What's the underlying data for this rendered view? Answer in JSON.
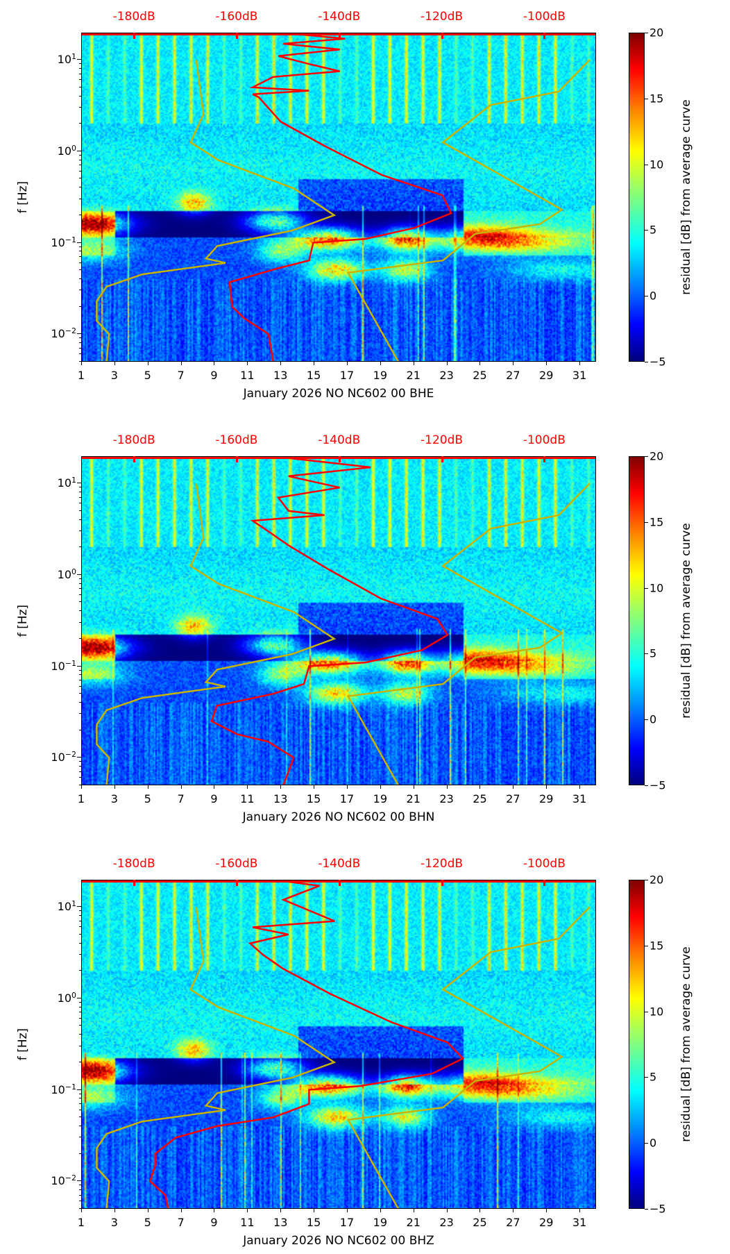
{
  "chart_data": {
    "type": "heatmap",
    "description_axes": "spectrogram of residual PSD vs day of month and frequency, with overlaid noise-model and median PSD curves",
    "x": {
      "label_template": "January 2026",
      "range": [
        1,
        32
      ],
      "ticks": [
        1,
        3,
        5,
        7,
        9,
        11,
        13,
        15,
        17,
        19,
        21,
        23,
        25,
        27,
        29,
        31
      ]
    },
    "y": {
      "label": "f [Hz]",
      "scale": "log",
      "range": [
        0.0049,
        19.5
      ],
      "ticks": [
        {
          "value": 10,
          "label": "10",
          "exp": "1"
        },
        {
          "value": 1,
          "label": "10",
          "exp": "0"
        },
        {
          "value": 0.1,
          "label": "10",
          "exp": "−1"
        },
        {
          "value": 0.01,
          "label": "10",
          "exp": "−2"
        }
      ]
    },
    "top_axis": {
      "range": [
        -190.3,
        -89.9
      ],
      "ticks": [
        -180,
        -160,
        -140,
        -120,
        -100
      ],
      "tick_labels": [
        "-180dB",
        "-160dB",
        "-140dB",
        "-120dB",
        "-100dB"
      ],
      "color": "#ff0000"
    },
    "colorbar": {
      "label": "residual [dB] from average curve",
      "range": [
        -5,
        20
      ],
      "ticks": [
        20,
        15,
        10,
        5,
        0,
        -5
      ],
      "tick_labels": [
        "20",
        "15",
        "10",
        "5",
        "0",
        "−5"
      ],
      "colormap": "jet"
    },
    "model_curves": {
      "color": "#c8b400",
      "low_noise": [
        [
          10,
          -168
        ],
        [
          2.54,
          -166.6
        ],
        [
          1.25,
          -169.1
        ],
        [
          0.8,
          -163.7
        ],
        [
          0.39,
          -148.9
        ],
        [
          0.2,
          -141.1
        ],
        [
          0.136,
          -149.3
        ],
        [
          0.092,
          -163.9
        ],
        [
          0.067,
          -166.1
        ],
        [
          0.06,
          -162.3
        ],
        [
          0.045,
          -178.6
        ],
        [
          0.033,
          -185.5
        ],
        [
          0.023,
          -187.4
        ],
        [
          0.014,
          -187.4
        ],
        [
          0.01,
          -185
        ],
        [
          0.005,
          -185.5
        ]
      ],
      "high_noise": [
        [
          10,
          -91.3
        ],
        [
          4.5,
          -97.3
        ],
        [
          3.2,
          -110.6
        ],
        [
          1.25,
          -119.9
        ],
        [
          0.23,
          -96.7
        ],
        [
          0.16,
          -101
        ],
        [
          0.125,
          -113.6
        ],
        [
          0.064,
          -119.9
        ],
        [
          0.047,
          -138.4
        ],
        [
          0.005,
          -128.6
        ]
      ]
    },
    "panels": [
      {
        "channel": "BHE",
        "xlabel": "January 2026 NO NC602 00 BHE",
        "seed": 11,
        "median_psd": {
          "color": "#ff0000",
          "points": [
            [
              19.5,
              -150
            ],
            [
              17,
              -139
            ],
            [
              15,
              -151
            ],
            [
              13,
              -140
            ],
            [
              11,
              -152
            ],
            [
              9,
              -146
            ],
            [
              7.5,
              -140
            ],
            [
              6.5,
              -153
            ],
            [
              5,
              -157
            ],
            [
              4.6,
              -146
            ],
            [
              4.2,
              -157
            ],
            [
              3.9,
              -155.8
            ],
            [
              3,
              -154
            ],
            [
              2.1,
              -151.5
            ],
            [
              1.13,
              -142.8
            ],
            [
              0.55,
              -131.8
            ],
            [
              0.33,
              -120
            ],
            [
              0.21,
              -118.3
            ],
            [
              0.145,
              -125.5
            ],
            [
              0.11,
              -135
            ],
            [
              0.1,
              -145.2
            ],
            [
              0.064,
              -146
            ],
            [
              0.052,
              -152.3
            ],
            [
              0.037,
              -161.5
            ],
            [
              0.02,
              -161
            ],
            [
              0.015,
              -158.7
            ],
            [
              0.01,
              -153.9
            ],
            [
              0.005,
              -153
            ]
          ]
        }
      },
      {
        "channel": "BHN",
        "xlabel": "January 2026 NO NC602 00 BHN",
        "seed": 23,
        "median_psd": {
          "color": "#ff0000",
          "points": [
            [
              19.5,
              -152
            ],
            [
              15,
              -134
            ],
            [
              12,
              -150
            ],
            [
              9,
              -140
            ],
            [
              7,
              -152
            ],
            [
              5,
              -150
            ],
            [
              4.5,
              -143
            ],
            [
              3.9,
              -157
            ],
            [
              3,
              -154
            ],
            [
              2.1,
              -150
            ],
            [
              1.13,
              -142
            ],
            [
              0.55,
              -132
            ],
            [
              0.33,
              -121
            ],
            [
              0.22,
              -119
            ],
            [
              0.15,
              -124
            ],
            [
              0.11,
              -135
            ],
            [
              0.1,
              -146
            ],
            [
              0.064,
              -147
            ],
            [
              0.05,
              -153
            ],
            [
              0.037,
              -164
            ],
            [
              0.025,
              -165
            ],
            [
              0.018,
              -160
            ],
            [
              0.015,
              -154
            ],
            [
              0.01,
              -149
            ],
            [
              0.005,
              -151
            ]
          ]
        }
      },
      {
        "channel": "BHZ",
        "xlabel": "January 2026 NO NC602 00 BHZ",
        "seed": 37,
        "median_psd": {
          "color": "#ff0000",
          "points": [
            [
              19.5,
              -152
            ],
            [
              17,
              -144
            ],
            [
              12,
              -151
            ],
            [
              7,
              -141
            ],
            [
              6,
              -157
            ],
            [
              5,
              -150
            ],
            [
              4,
              -157.5
            ],
            [
              3,
              -155
            ],
            [
              2.1,
              -151
            ],
            [
              1.13,
              -142
            ],
            [
              0.55,
              -130
            ],
            [
              0.33,
              -119
            ],
            [
              0.22,
              -116
            ],
            [
              0.15,
              -122
            ],
            [
              0.11,
              -136
            ],
            [
              0.1,
              -146
            ],
            [
              0.07,
              -146
            ],
            [
              0.05,
              -153
            ],
            [
              0.04,
              -164
            ],
            [
              0.03,
              -172
            ],
            [
              0.02,
              -176
            ],
            [
              0.015,
              -176
            ],
            [
              0.01,
              -177
            ],
            [
              0.007,
              -174
            ],
            [
              0.005,
              -173.5
            ]
          ]
        }
      }
    ]
  }
}
